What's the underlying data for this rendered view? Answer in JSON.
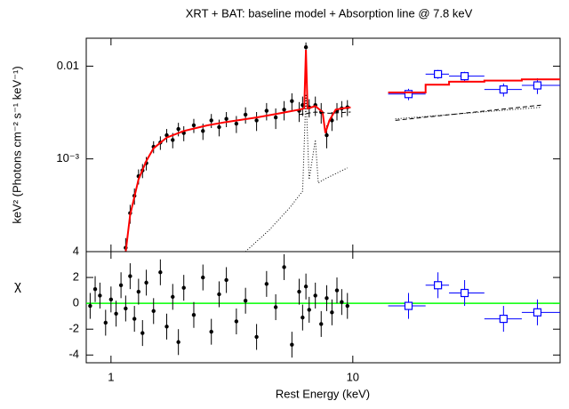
{
  "chart_data": [
    {
      "type": "scatter",
      "title": "XRT + BAT: baseline model + Absorption line @ 7.8 keV",
      "ylabel": "keV² (Photons cm⁻² s⁻¹ keV⁻¹)",
      "xlog": true,
      "ylog": true,
      "xlim": [
        0.79,
        72
      ],
      "ylim": [
        0.0001,
        0.02
      ],
      "yticks": [
        {
          "value": 0.001,
          "label": "10⁻³"
        },
        {
          "value": 0.01,
          "label": "0.01"
        }
      ],
      "series": [
        {
          "kind": "points",
          "color": "#000000",
          "x": [
            1.15,
            1.2,
            1.25,
            1.3,
            1.35,
            1.4,
            1.5,
            1.6,
            1.7,
            1.8,
            1.9,
            2.0,
            2.2,
            2.4,
            2.6,
            2.8,
            3.0,
            3.3,
            3.6,
            4.0,
            4.4,
            4.8,
            5.2,
            5.6,
            6.0,
            6.2,
            6.4,
            6.6,
            7.0,
            7.4,
            7.8,
            8.2,
            8.6,
            9.0,
            9.5
          ],
          "y": [
            0.00011,
            0.00026,
            0.0004,
            0.00065,
            0.00075,
            0.0009,
            0.00135,
            0.0015,
            0.0018,
            0.0016,
            0.0021,
            0.0019,
            0.0023,
            0.002,
            0.0026,
            0.0022,
            0.0027,
            0.0024,
            0.003,
            0.0026,
            0.0033,
            0.0028,
            0.0034,
            0.0042,
            0.0033,
            0.0038,
            0.016,
            0.0036,
            0.0038,
            0.0032,
            0.0018,
            0.0026,
            0.0033,
            0.0035,
            0.0036
          ],
          "yerr": [
            3e-05,
            6e-05,
            8e-05,
            0.00012,
            0.00013,
            0.00015,
            0.0002,
            0.00025,
            0.0003,
            0.0003,
            0.00035,
            0.00035,
            0.0004,
            0.0004,
            0.00045,
            0.00045,
            0.0005,
            0.0005,
            0.0006,
            0.0006,
            0.0007,
            0.0007,
            0.0008,
            0.0009,
            0.0008,
            0.0009,
            0.002,
            0.0008,
            0.0009,
            0.0008,
            0.0005,
            0.0006,
            0.0007,
            0.0007,
            0.0007
          ]
        },
        {
          "kind": "boxes",
          "color": "#0000ff",
          "x": [
            17,
            22.5,
            29,
            42,
            58
          ],
          "xlo": [
            14,
            20,
            25,
            35,
            50
          ],
          "xhi": [
            20,
            25,
            35,
            50,
            72
          ],
          "y": [
            0.005,
            0.0082,
            0.0078,
            0.0056,
            0.0062
          ],
          "yerr": [
            0.0007,
            0.0009,
            0.0009,
            0.0009,
            0.0012
          ]
        },
        {
          "kind": "line",
          "color": "#ff0000",
          "width": 2,
          "x": [
            1.15,
            1.2,
            1.3,
            1.4,
            1.5,
            1.7,
            2,
            2.5,
            3,
            4,
            5,
            6,
            6.3,
            6.4,
            6.5,
            7,
            7.5,
            7.7,
            8,
            8.5,
            9,
            9.8,
            12,
            14,
            20,
            20,
            25,
            25,
            35,
            35,
            50,
            50,
            72
          ],
          "y": [
            0.0001,
            0.00025,
            0.0006,
            0.00095,
            0.0013,
            0.0017,
            0.002,
            0.0023,
            0.0025,
            0.0028,
            0.0031,
            0.0034,
            0.0035,
            0.015,
            0.0035,
            0.0037,
            0.0032,
            0.0019,
            0.0026,
            0.0034,
            0.0035,
            0.0036,
            null,
            0.0052,
            0.0052,
            0.0063,
            0.0063,
            0.0068,
            0.0068,
            0.007,
            0.007,
            0.0072,
            0.0072
          ]
        },
        {
          "kind": "line",
          "color": "#000000",
          "width": 1,
          "dash": "1,2",
          "x": [
            3.6,
            4.5,
            5.5,
            6.2,
            6.4,
            6.6,
            7.0,
            7.2,
            7.6,
            9.5,
            12,
            15,
            60
          ],
          "y": [
            0.0001,
            0.00017,
            0.0003,
            0.00045,
            0.005,
            0.0006,
            0.0016,
            0.00055,
            0.0006,
            0.0008,
            null,
            0.0027,
            0.0036
          ]
        },
        {
          "kind": "line",
          "color": "#000000",
          "width": 1,
          "dash": "5,3",
          "x": [
            6,
            7,
            8,
            9.8,
            12,
            15,
            60
          ],
          "y": [
            0.003,
            0.0032,
            0.0031,
            0.0032,
            null,
            0.0026,
            0.0038
          ]
        }
      ]
    },
    {
      "type": "scatter",
      "xlabel": "Rest Energy (keV)",
      "ylabel": "χ",
      "xlog": true,
      "ylog": false,
      "xlim": [
        0.79,
        72
      ],
      "ylim": [
        -4.6,
        4
      ],
      "xticks": [
        1,
        10
      ],
      "yticks": [
        -4,
        -2,
        0,
        2,
        4
      ],
      "series": [
        {
          "kind": "line",
          "color": "#00ff00",
          "width": 1.5,
          "x": [
            0.79,
            72
          ],
          "y": [
            0,
            0
          ]
        },
        {
          "kind": "points",
          "color": "#000000",
          "x": [
            0.82,
            0.86,
            0.9,
            0.95,
            1.0,
            1.05,
            1.1,
            1.15,
            1.2,
            1.25,
            1.3,
            1.35,
            1.4,
            1.5,
            1.6,
            1.7,
            1.8,
            1.9,
            2.0,
            2.2,
            2.4,
            2.6,
            2.8,
            3.0,
            3.3,
            3.6,
            4.0,
            4.4,
            4.8,
            5.2,
            5.6,
            6.0,
            6.2,
            6.4,
            6.6,
            7.0,
            7.4,
            7.8,
            8.2,
            8.6,
            9.0,
            9.5
          ],
          "y": [
            -0.2,
            1.1,
            0.6,
            -1.5,
            0.3,
            -0.8,
            1.4,
            -0.4,
            2.1,
            -1.2,
            0.9,
            -2.3,
            1.6,
            -0.6,
            2.4,
            -1.8,
            0.5,
            -3.0,
            1.2,
            -0.9,
            2.0,
            -2.2,
            0.7,
            1.8,
            -1.4,
            0.2,
            -2.6,
            1.5,
            -0.3,
            2.8,
            -3.2,
            0.9,
            -1.1,
            1.3,
            -0.5,
            0.6,
            -1.6,
            0.4,
            -0.7,
            1.0,
            0.1,
            -0.2
          ],
          "yerr": [
            1,
            1,
            1,
            1,
            1,
            1,
            1,
            1,
            1,
            1,
            1,
            1,
            1,
            1,
            1,
            1,
            1,
            1,
            1,
            1,
            1,
            1,
            1,
            1,
            1,
            1,
            1,
            1,
            1,
            1,
            1,
            1,
            1,
            1,
            1,
            1,
            1,
            1,
            1,
            1,
            1,
            1
          ]
        },
        {
          "kind": "boxes",
          "color": "#0000ff",
          "x": [
            17,
            22.5,
            29,
            42,
            58
          ],
          "xlo": [
            14,
            20,
            25,
            35,
            50
          ],
          "xhi": [
            20,
            25,
            35,
            50,
            72
          ],
          "y": [
            -0.2,
            1.4,
            0.8,
            -1.2,
            -0.7
          ],
          "yerr": [
            1,
            1,
            1,
            1,
            1
          ]
        }
      ]
    }
  ]
}
